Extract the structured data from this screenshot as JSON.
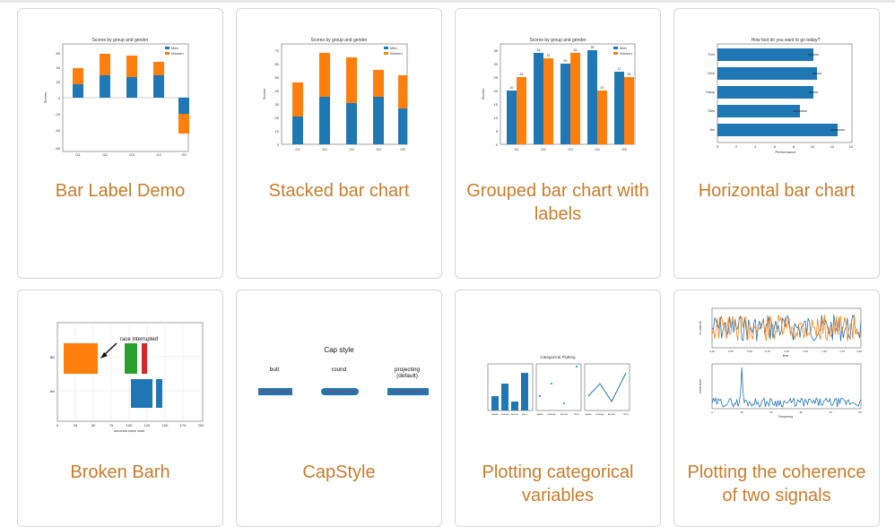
{
  "colors": {
    "title": "#ca7c2b",
    "blue": "#1f77b4",
    "orange": "#ff7f0e",
    "green": "#2ca02c",
    "red": "#d62728",
    "border": "#d7d7d7"
  },
  "cards": [
    {
      "title": "Bar Label Demo"
    },
    {
      "title": "Stacked bar chart"
    },
    {
      "title": "Grouped bar chart with labels"
    },
    {
      "title": "Horizontal bar chart"
    },
    {
      "title": "Broken Barh"
    },
    {
      "title": "CapStyle"
    },
    {
      "title": "Plotting categorical variables"
    },
    {
      "title": "Plotting the coherence of two signals"
    }
  ],
  "thumbs": {
    "bar_label_demo": {
      "title": "Scores by group and gender",
      "ylabel": "Scores",
      "legend": [
        "Men",
        "Women"
      ],
      "yticks": [
        "60",
        "40",
        "20",
        "0",
        "-20",
        "-40",
        "-60"
      ],
      "xticks": [
        "G1",
        "G2",
        "G3",
        "G4",
        "G5"
      ]
    },
    "stacked_bar": {
      "title": "Scores by group and gender",
      "ylabel": "Scores",
      "legend": [
        "Men",
        "Women"
      ],
      "yticks": [
        "0",
        "10",
        "20",
        "30",
        "40",
        "50",
        "60",
        "70"
      ],
      "xticks": [
        "G1",
        "G2",
        "G3",
        "G4",
        "G5"
      ]
    },
    "grouped_bar": {
      "title": "Scores by group and gender",
      "ylabel": "Scores",
      "legend": [
        "Men",
        "Women"
      ],
      "yticks": [
        "0",
        "5",
        "10",
        "15",
        "20",
        "25",
        "30",
        "35"
      ],
      "xticks": [
        "G1",
        "G2",
        "G3",
        "G4",
        "G5"
      ],
      "men": [
        20,
        34,
        30,
        35,
        27
      ],
      "women": [
        25,
        32,
        34,
        20,
        25
      ]
    },
    "horizontal_bar": {
      "title": "How fast do you want to go today?",
      "xlabel": "Performance",
      "people": [
        "Tom",
        "Dick",
        "Harry",
        "Slim",
        "Jim"
      ],
      "xticks": [
        "0",
        "2",
        "4",
        "6",
        "8",
        "10",
        "12",
        "14"
      ]
    },
    "broken_barh": {
      "annotation": "race interrupted",
      "xlabel": "seconds since start",
      "yticks": [
        "Bill",
        "Jim"
      ],
      "xticks": [
        "0",
        "25",
        "50",
        "75",
        "100",
        "125",
        "150",
        "175",
        "200"
      ]
    },
    "capstyle": {
      "title": "Cap style",
      "labels": [
        "butt",
        "round",
        "projecting",
        "(default)"
      ]
    },
    "categorical": {
      "title": "Categorical Plotting",
      "cats": [
        "apple",
        "orange",
        "lemon",
        "lime"
      ]
    },
    "coherence": {
      "ylabel_top": "s1 and s2",
      "xlabel_top": "time",
      "ylabel_bottom": "coherence",
      "xlabel_bottom": "Frequency",
      "xticks_top": [
        "0.00",
        "0.25",
        "0.50",
        "0.75",
        "1.00",
        "1.25",
        "1.50",
        "1.75",
        "2.00"
      ],
      "xticks_bottom": [
        "0",
        "10",
        "20",
        "30",
        "40",
        "50"
      ]
    }
  }
}
